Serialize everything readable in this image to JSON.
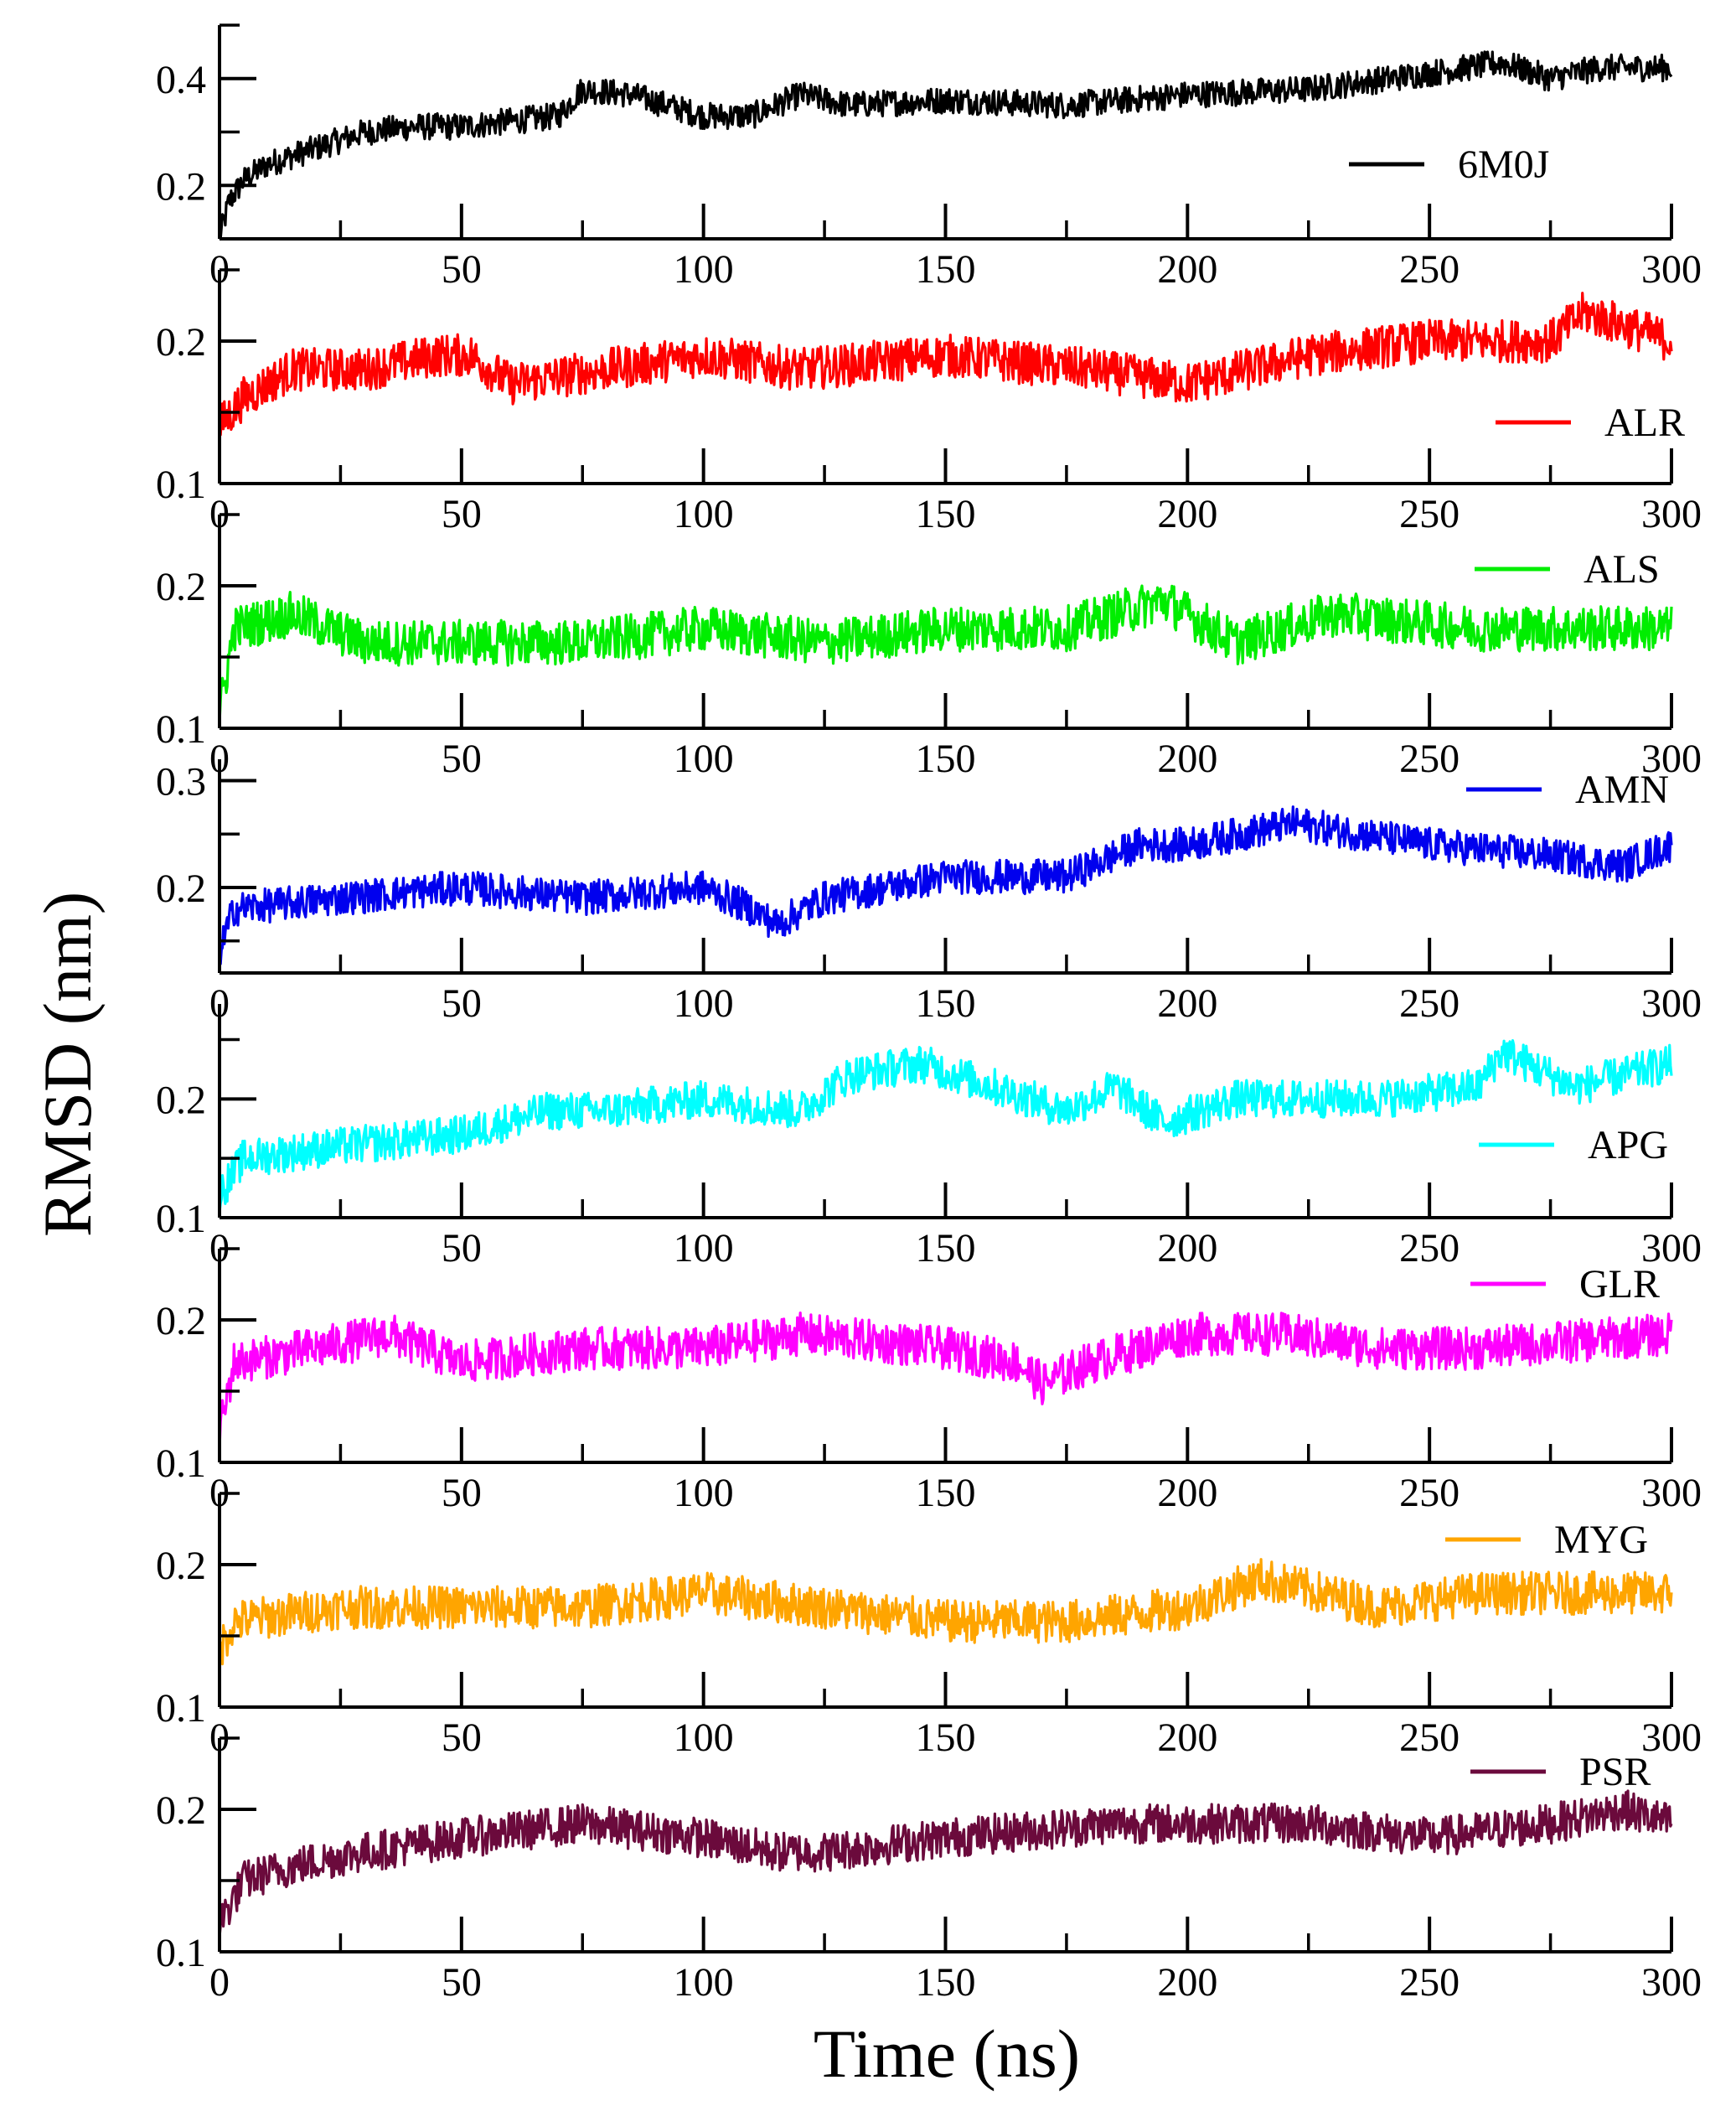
{
  "chart_data": {
    "type": "line",
    "xlabel": "Time (ns)",
    "ylabel": "RMSD (nm)",
    "xlim": [
      0,
      300
    ],
    "x_ticks": [
      0,
      50,
      100,
      150,
      200,
      250,
      300
    ],
    "x_tick_labels": [
      "0",
      "50",
      "100",
      "150",
      "200",
      "250",
      "300"
    ],
    "panels": [
      {
        "name": "6M0J",
        "color": "#000000",
        "ylim": [
          0.1,
          0.5
        ],
        "y_ticks": [
          0.2,
          0.4
        ],
        "y_tick_labels": [
          "0.2",
          "0.4"
        ],
        "series": [
          {
            "x": 0,
            "y": 0.1
          },
          {
            "x": 2,
            "y": 0.17
          },
          {
            "x": 5,
            "y": 0.21
          },
          {
            "x": 10,
            "y": 0.24
          },
          {
            "x": 20,
            "y": 0.27
          },
          {
            "x": 30,
            "y": 0.3
          },
          {
            "x": 40,
            "y": 0.31
          },
          {
            "x": 50,
            "y": 0.31
          },
          {
            "x": 60,
            "y": 0.32
          },
          {
            "x": 70,
            "y": 0.33
          },
          {
            "x": 75,
            "y": 0.38
          },
          {
            "x": 85,
            "y": 0.37
          },
          {
            "x": 100,
            "y": 0.33
          },
          {
            "x": 110,
            "y": 0.33
          },
          {
            "x": 120,
            "y": 0.37
          },
          {
            "x": 130,
            "y": 0.35
          },
          {
            "x": 150,
            "y": 0.36
          },
          {
            "x": 175,
            "y": 0.35
          },
          {
            "x": 200,
            "y": 0.37
          },
          {
            "x": 225,
            "y": 0.38
          },
          {
            "x": 250,
            "y": 0.41
          },
          {
            "x": 265,
            "y": 0.43
          },
          {
            "x": 275,
            "y": 0.4
          },
          {
            "x": 285,
            "y": 0.42
          },
          {
            "x": 300,
            "y": 0.42
          }
        ],
        "noise": 0.025
      },
      {
        "name": "ALR",
        "color": "#ff0000",
        "ylim": [
          0.1,
          0.25
        ],
        "y_ticks": [
          0.1,
          0.2
        ],
        "y_tick_labels": [
          "0.1",
          "0.2"
        ],
        "series": [
          {
            "x": 0,
            "y": 0.14
          },
          {
            "x": 5,
            "y": 0.16
          },
          {
            "x": 15,
            "y": 0.18
          },
          {
            "x": 30,
            "y": 0.18
          },
          {
            "x": 45,
            "y": 0.19
          },
          {
            "x": 52,
            "y": 0.19
          },
          {
            "x": 60,
            "y": 0.17
          },
          {
            "x": 80,
            "y": 0.18
          },
          {
            "x": 100,
            "y": 0.19
          },
          {
            "x": 120,
            "y": 0.18
          },
          {
            "x": 150,
            "y": 0.19
          },
          {
            "x": 180,
            "y": 0.18
          },
          {
            "x": 200,
            "y": 0.17
          },
          {
            "x": 225,
            "y": 0.19
          },
          {
            "x": 250,
            "y": 0.2
          },
          {
            "x": 275,
            "y": 0.2
          },
          {
            "x": 282,
            "y": 0.22
          },
          {
            "x": 300,
            "y": 0.2
          }
        ],
        "noise": 0.015
      },
      {
        "name": "ALS",
        "color": "#00ee00",
        "ylim": [
          0.1,
          0.25
        ],
        "y_ticks": [
          0.1,
          0.2
        ],
        "y_tick_labels": [
          "0.1",
          "0.2"
        ],
        "series": [
          {
            "x": 0,
            "y": 0.11
          },
          {
            "x": 3,
            "y": 0.17
          },
          {
            "x": 15,
            "y": 0.18
          },
          {
            "x": 30,
            "y": 0.16
          },
          {
            "x": 50,
            "y": 0.16
          },
          {
            "x": 75,
            "y": 0.16
          },
          {
            "x": 100,
            "y": 0.17
          },
          {
            "x": 125,
            "y": 0.16
          },
          {
            "x": 150,
            "y": 0.17
          },
          {
            "x": 175,
            "y": 0.17
          },
          {
            "x": 195,
            "y": 0.19
          },
          {
            "x": 210,
            "y": 0.16
          },
          {
            "x": 230,
            "y": 0.18
          },
          {
            "x": 260,
            "y": 0.17
          },
          {
            "x": 300,
            "y": 0.17
          }
        ],
        "noise": 0.016
      },
      {
        "name": "AMN",
        "color": "#0000ee",
        "ylim": [
          0.12,
          0.32
        ],
        "y_ticks": [
          0.2,
          0.3
        ],
        "y_tick_labels": [
          "0.2",
          "0.3"
        ],
        "series": [
          {
            "x": 0,
            "y": 0.14
          },
          {
            "x": 3,
            "y": 0.18
          },
          {
            "x": 25,
            "y": 0.19
          },
          {
            "x": 50,
            "y": 0.2
          },
          {
            "x": 75,
            "y": 0.19
          },
          {
            "x": 100,
            "y": 0.2
          },
          {
            "x": 110,
            "y": 0.18
          },
          {
            "x": 115,
            "y": 0.165
          },
          {
            "x": 125,
            "y": 0.19
          },
          {
            "x": 150,
            "y": 0.21
          },
          {
            "x": 175,
            "y": 0.21
          },
          {
            "x": 190,
            "y": 0.24
          },
          {
            "x": 200,
            "y": 0.24
          },
          {
            "x": 222,
            "y": 0.26
          },
          {
            "x": 250,
            "y": 0.24
          },
          {
            "x": 275,
            "y": 0.23
          },
          {
            "x": 290,
            "y": 0.22
          },
          {
            "x": 300,
            "y": 0.24
          }
        ],
        "noise": 0.016
      },
      {
        "name": "APG",
        "color": "#00ffff",
        "ylim": [
          0.1,
          0.28
        ],
        "y_ticks": [
          0.1,
          0.2
        ],
        "y_tick_labels": [
          "0.1",
          "0.2"
        ],
        "series": [
          {
            "x": 0,
            "y": 0.12
          },
          {
            "x": 5,
            "y": 0.15
          },
          {
            "x": 25,
            "y": 0.16
          },
          {
            "x": 50,
            "y": 0.17
          },
          {
            "x": 68,
            "y": 0.19
          },
          {
            "x": 80,
            "y": 0.19
          },
          {
            "x": 100,
            "y": 0.2
          },
          {
            "x": 120,
            "y": 0.19
          },
          {
            "x": 130,
            "y": 0.22
          },
          {
            "x": 145,
            "y": 0.23
          },
          {
            "x": 160,
            "y": 0.21
          },
          {
            "x": 175,
            "y": 0.19
          },
          {
            "x": 185,
            "y": 0.21
          },
          {
            "x": 195,
            "y": 0.18
          },
          {
            "x": 210,
            "y": 0.2
          },
          {
            "x": 240,
            "y": 0.2
          },
          {
            "x": 260,
            "y": 0.21
          },
          {
            "x": 265,
            "y": 0.24
          },
          {
            "x": 280,
            "y": 0.21
          },
          {
            "x": 300,
            "y": 0.23
          }
        ],
        "noise": 0.016
      },
      {
        "name": "GLR",
        "color": "#ff00ff",
        "ylim": [
          0.1,
          0.25
        ],
        "y_ticks": [
          0.1,
          0.2
        ],
        "y_tick_labels": [
          "0.1",
          "0.2"
        ],
        "series": [
          {
            "x": 0,
            "y": 0.12
          },
          {
            "x": 3,
            "y": 0.17
          },
          {
            "x": 20,
            "y": 0.18
          },
          {
            "x": 35,
            "y": 0.19
          },
          {
            "x": 50,
            "y": 0.17
          },
          {
            "x": 75,
            "y": 0.18
          },
          {
            "x": 100,
            "y": 0.18
          },
          {
            "x": 120,
            "y": 0.19
          },
          {
            "x": 150,
            "y": 0.18
          },
          {
            "x": 165,
            "y": 0.17
          },
          {
            "x": 170,
            "y": 0.155
          },
          {
            "x": 180,
            "y": 0.17
          },
          {
            "x": 200,
            "y": 0.19
          },
          {
            "x": 220,
            "y": 0.19
          },
          {
            "x": 240,
            "y": 0.18
          },
          {
            "x": 260,
            "y": 0.18
          },
          {
            "x": 300,
            "y": 0.19
          }
        ],
        "noise": 0.015
      },
      {
        "name": "MYG",
        "color": "#ffa500",
        "ylim": [
          0.1,
          0.25
        ],
        "y_ticks": [
          0.1,
          0.2
        ],
        "y_tick_labels": [
          "0.1",
          "0.2"
        ],
        "series": [
          {
            "x": 0,
            "y": 0.14
          },
          {
            "x": 3,
            "y": 0.16
          },
          {
            "x": 25,
            "y": 0.17
          },
          {
            "x": 50,
            "y": 0.17
          },
          {
            "x": 75,
            "y": 0.17
          },
          {
            "x": 100,
            "y": 0.18
          },
          {
            "x": 125,
            "y": 0.17
          },
          {
            "x": 150,
            "y": 0.16
          },
          {
            "x": 175,
            "y": 0.16
          },
          {
            "x": 200,
            "y": 0.17
          },
          {
            "x": 215,
            "y": 0.19
          },
          {
            "x": 240,
            "y": 0.17
          },
          {
            "x": 260,
            "y": 0.18
          },
          {
            "x": 280,
            "y": 0.18
          },
          {
            "x": 300,
            "y": 0.18
          }
        ],
        "noise": 0.015
      },
      {
        "name": "PSR",
        "color": "#6b0a3c",
        "ylim": [
          0.1,
          0.25
        ],
        "y_ticks": [
          0.1,
          0.2
        ],
        "y_tick_labels": [
          "0.1",
          "0.2"
        ],
        "series": [
          {
            "x": 0,
            "y": 0.12
          },
          {
            "x": 5,
            "y": 0.15
          },
          {
            "x": 15,
            "y": 0.16
          },
          {
            "x": 30,
            "y": 0.17
          },
          {
            "x": 50,
            "y": 0.18
          },
          {
            "x": 75,
            "y": 0.19
          },
          {
            "x": 100,
            "y": 0.18
          },
          {
            "x": 115,
            "y": 0.17
          },
          {
            "x": 125,
            "y": 0.17
          },
          {
            "x": 150,
            "y": 0.18
          },
          {
            "x": 185,
            "y": 0.19
          },
          {
            "x": 200,
            "y": 0.19
          },
          {
            "x": 225,
            "y": 0.19
          },
          {
            "x": 250,
            "y": 0.18
          },
          {
            "x": 275,
            "y": 0.19
          },
          {
            "x": 290,
            "y": 0.2
          },
          {
            "x": 300,
            "y": 0.19
          }
        ],
        "noise": 0.014
      }
    ]
  }
}
